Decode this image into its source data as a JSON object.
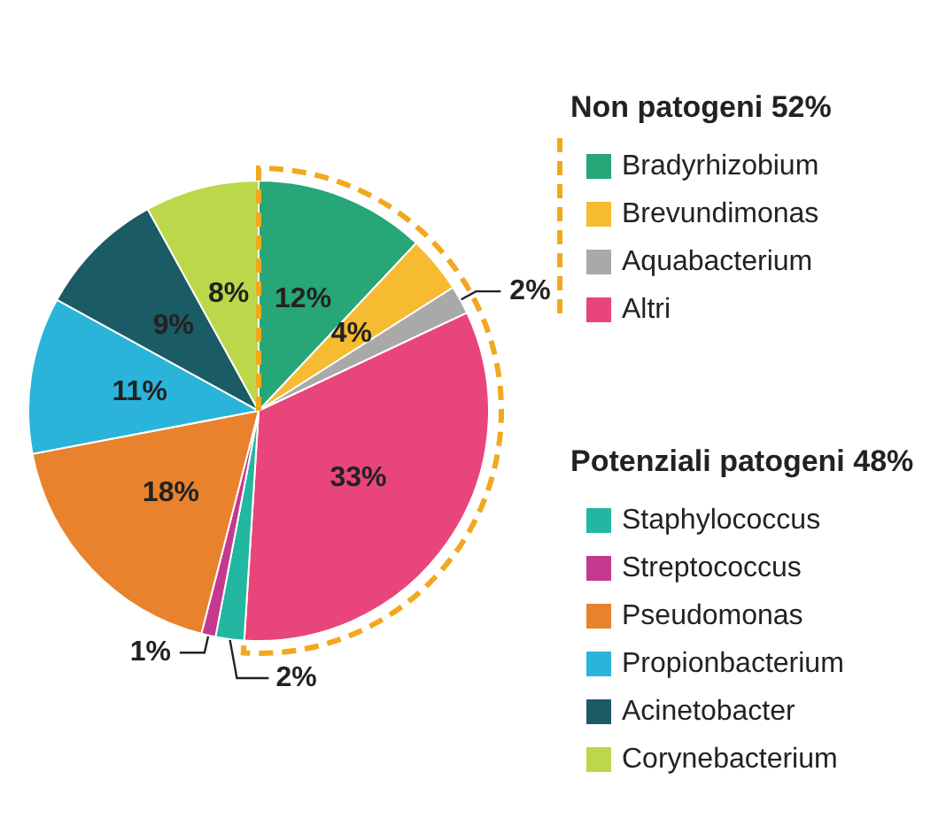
{
  "chart_data": {
    "type": "pie",
    "categories": [
      "Bradyrhizobium",
      "Brevundimonas",
      "Aquabacterium",
      "Altri",
      "Staphylococcus",
      "Streptococcus",
      "Pseudomonas",
      "Propionbacterium",
      "Acinetobacter",
      "Corynebacterium"
    ],
    "values": [
      12,
      4,
      2,
      33,
      2,
      1,
      18,
      11,
      9,
      8
    ],
    "value_labels": [
      "12%",
      "4%",
      "2%",
      "33%",
      "2%",
      "1%",
      "18%",
      "11%",
      "9%",
      "8%"
    ],
    "colors": [
      "#27a677",
      "#f6bb30",
      "#a9a9a9",
      "#e8467a",
      "#22b7a0",
      "#c4398f",
      "#e8822c",
      "#2ab4d9",
      "#1b5b65",
      "#bbd84a"
    ],
    "annotations": [
      "Non patogeni 52%",
      "Potenziali patogeni 48%"
    ],
    "legend": "right"
  }
}
